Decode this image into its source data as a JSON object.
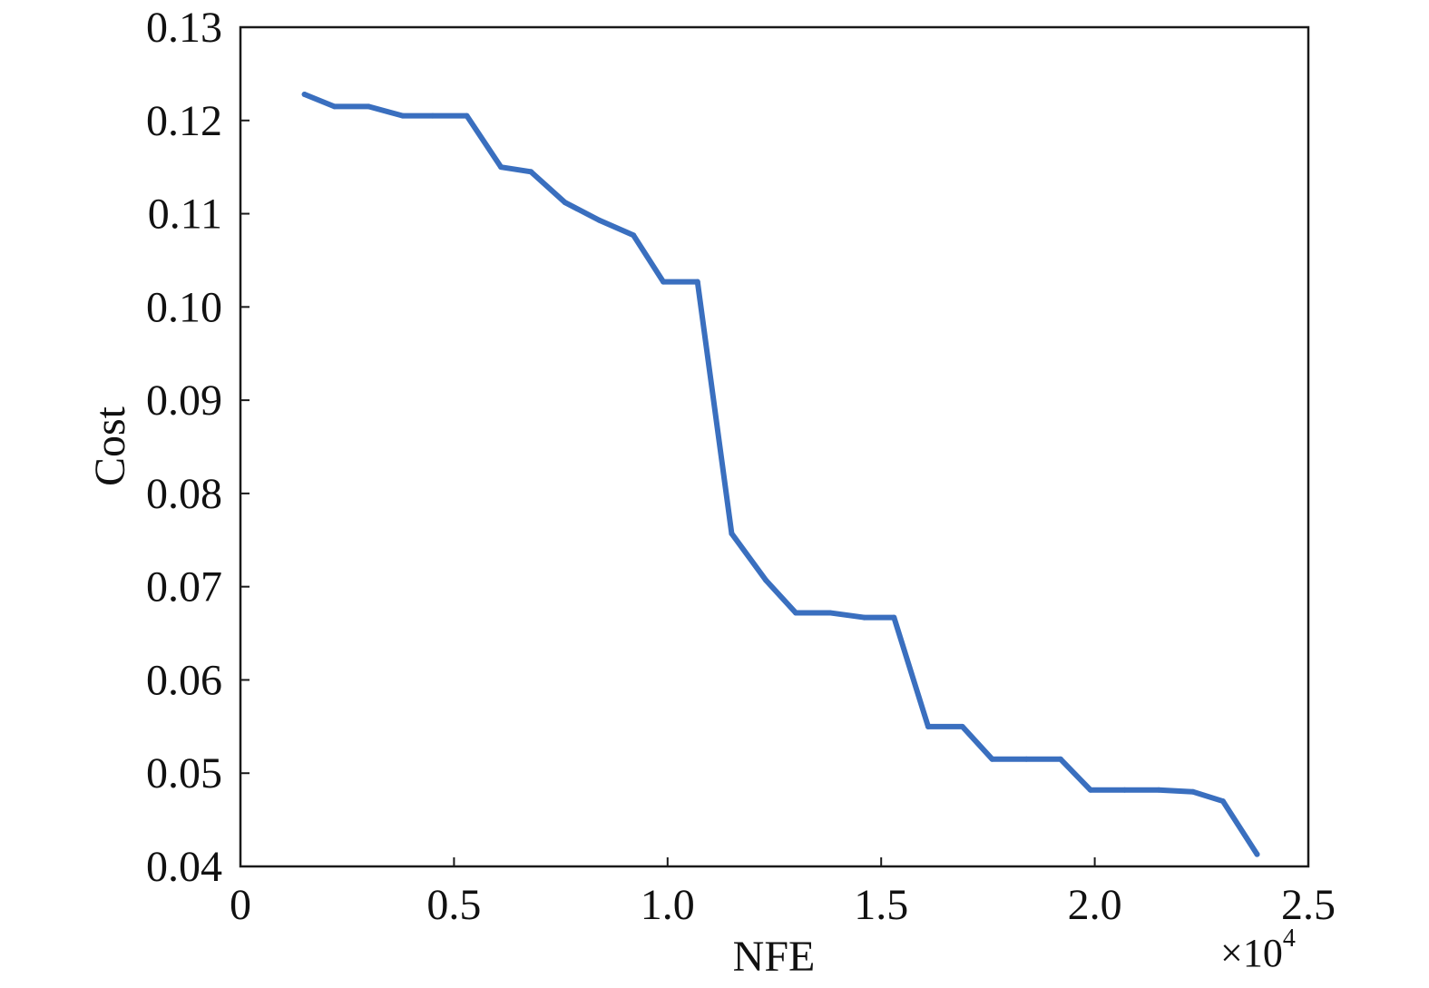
{
  "chart_data": {
    "type": "line",
    "title": "",
    "xlabel": "NFE",
    "ylabel": "Cost",
    "x_multiplier_label": "×10",
    "x_multiplier_exponent": "4",
    "xlim": [
      0,
      2.5
    ],
    "ylim": [
      0.04,
      0.13
    ],
    "xticks": [
      "0",
      "0.5",
      "1.0",
      "1.5",
      "2.0",
      "2.5"
    ],
    "xtick_values": [
      0,
      0.5,
      1.0,
      1.5,
      2.0,
      2.5
    ],
    "yticks": [
      "0.04",
      "0.05",
      "0.06",
      "0.07",
      "0.08",
      "0.09",
      "0.10",
      "0.11",
      "0.12",
      "0.13"
    ],
    "ytick_values": [
      0.04,
      0.05,
      0.06,
      0.07,
      0.08,
      0.09,
      0.1,
      0.11,
      0.12,
      0.13
    ],
    "grid": false,
    "line_color": "#3a6fbf",
    "series": [
      {
        "x": [
          0.15,
          0.22,
          0.3,
          0.38,
          0.45,
          0.53,
          0.61,
          0.68,
          0.76,
          0.84,
          0.92,
          0.99,
          1.07,
          1.15,
          1.23,
          1.3,
          1.38,
          1.46,
          1.53,
          1.61,
          1.69,
          1.76,
          1.84,
          1.92,
          1.99,
          2.07,
          2.15,
          2.23,
          2.3,
          2.38
        ],
        "y": [
          0.1228,
          0.1215,
          0.1215,
          0.1205,
          0.1205,
          0.1205,
          0.115,
          0.1145,
          0.1112,
          0.1093,
          0.1077,
          0.1027,
          0.1027,
          0.0757,
          0.0707,
          0.0672,
          0.0672,
          0.0667,
          0.0667,
          0.055,
          0.055,
          0.0515,
          0.0515,
          0.0515,
          0.0482,
          0.0482,
          0.0482,
          0.048,
          0.047,
          0.0413
        ]
      }
    ]
  }
}
